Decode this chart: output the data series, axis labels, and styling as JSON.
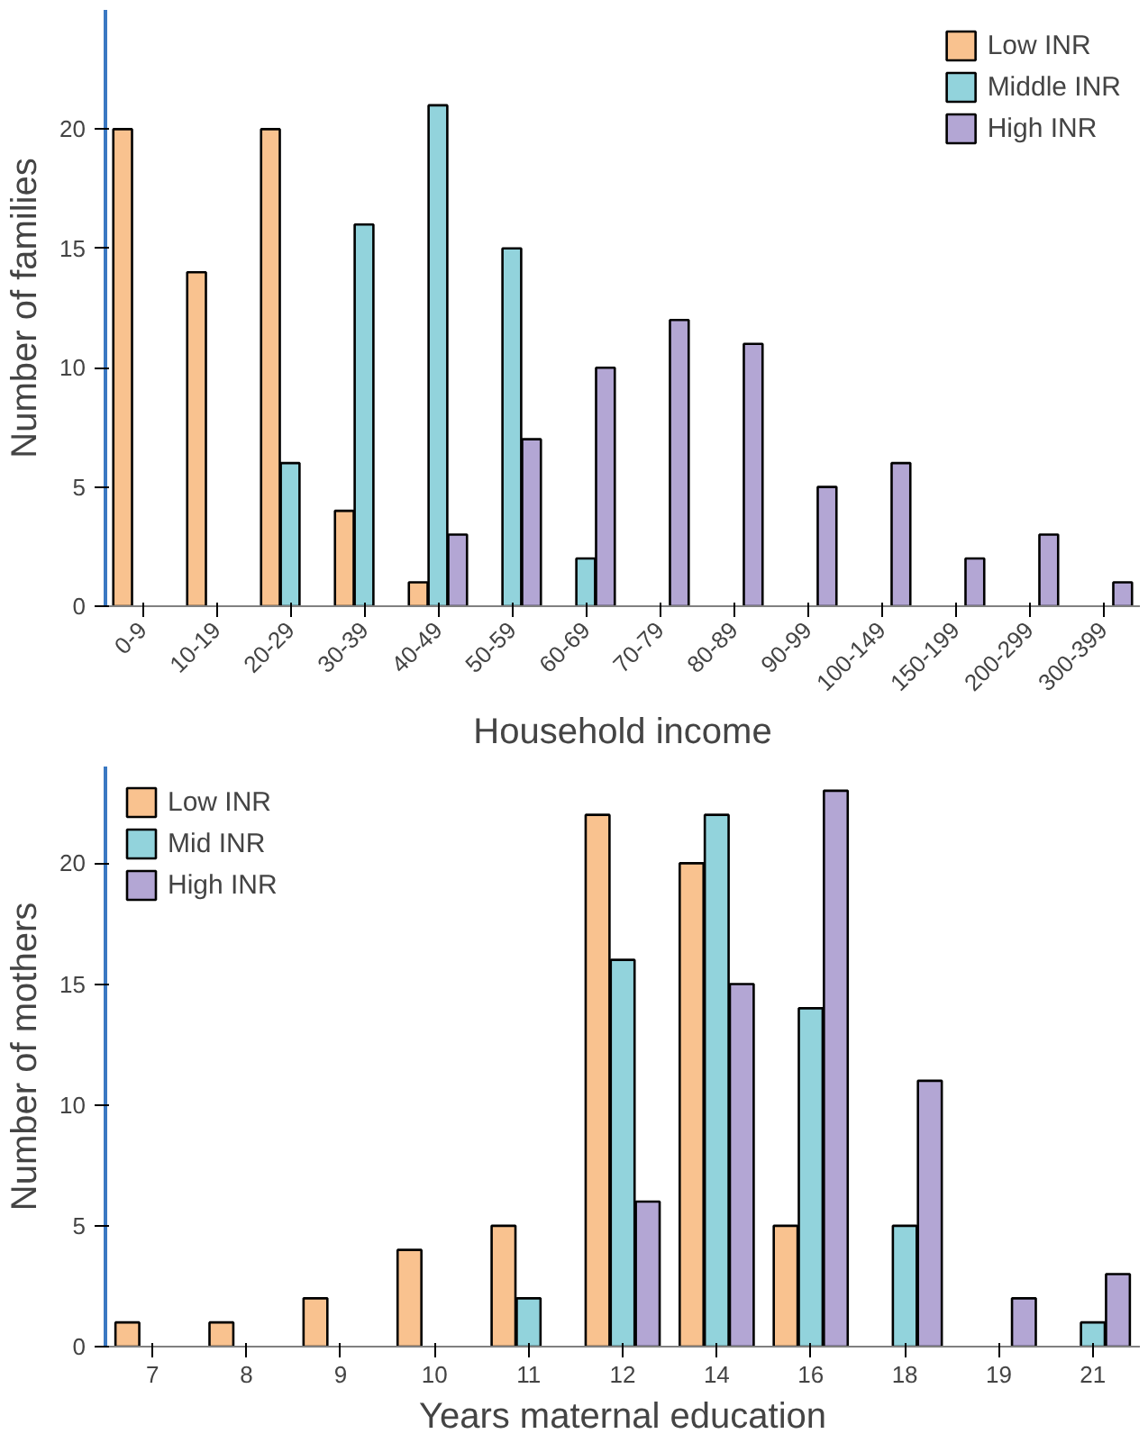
{
  "chart_data": [
    {
      "type": "bar",
      "xlabel": "Household income",
      "ylabel": "Number of families",
      "categories": [
        "0-9",
        "10-19",
        "20-29",
        "30-39",
        "40-49",
        "50-59",
        "60-69",
        "70-79",
        "80-89",
        "90-99",
        "100-149",
        "150-199",
        "200-299",
        "300-399"
      ],
      "series": [
        {
          "name": "Low INR",
          "color": "#f9c28f",
          "values": [
            20,
            14,
            20,
            4,
            1,
            null,
            null,
            null,
            null,
            null,
            null,
            null,
            null,
            null
          ]
        },
        {
          "name": "Middle INR",
          "color": "#92d3dc",
          "values": [
            null,
            null,
            6,
            16,
            21,
            15,
            2,
            null,
            null,
            null,
            null,
            null,
            null,
            null
          ]
        },
        {
          "name": "High INR",
          "color": "#b3a6d4",
          "values": [
            null,
            null,
            null,
            null,
            3,
            7,
            10,
            12,
            11,
            5,
            6,
            2,
            3,
            1
          ]
        }
      ],
      "ylim": [
        0,
        25
      ],
      "yticks": [
        0,
        5,
        10,
        15,
        20
      ],
      "grid": false,
      "legend": "top right"
    },
    {
      "type": "bar",
      "xlabel": "Years maternal education",
      "ylabel": "Number of mothers",
      "categories": [
        "7",
        "8",
        "9",
        "10",
        "11",
        "12",
        "14",
        "16",
        "18",
        "19",
        "21"
      ],
      "series": [
        {
          "name": "Low INR",
          "color": "#f9c28f",
          "values": [
            1,
            1,
            2,
            4,
            5,
            22,
            20,
            5,
            null,
            null,
            null
          ]
        },
        {
          "name": "Mid INR",
          "color": "#92d3dc",
          "values": [
            null,
            null,
            null,
            null,
            2,
            16,
            22,
            14,
            5,
            null,
            1
          ]
        },
        {
          "name": "High INR",
          "color": "#b3a6d4",
          "values": [
            null,
            null,
            null,
            null,
            null,
            6,
            15,
            23,
            11,
            2,
            3
          ]
        }
      ],
      "ylim": [
        0,
        24
      ],
      "yticks": [
        0,
        5,
        10,
        15,
        20
      ],
      "grid": false,
      "legend": "top left"
    }
  ]
}
